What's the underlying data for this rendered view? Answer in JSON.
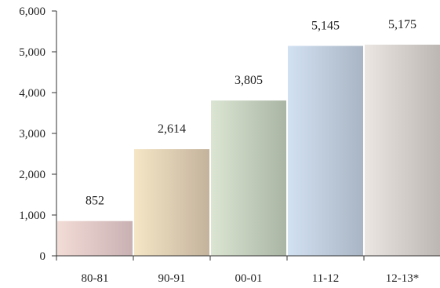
{
  "chart_data": {
    "type": "bar",
    "title": "",
    "xlabel": "",
    "ylabel": "",
    "categories": [
      "80-81",
      "90-91",
      "00-01",
      "11-12",
      "12-13*"
    ],
    "values": [
      852,
      2614,
      3805,
      5145,
      5175
    ],
    "data_labels": [
      "852",
      "2,614",
      "3,805",
      "5,145",
      "5,175"
    ],
    "ylim": [
      0,
      6000
    ],
    "yticks": [
      0,
      1000,
      2000,
      3000,
      4000,
      5000,
      6000
    ],
    "ytick_labels": [
      "0",
      "1,000",
      "2,000",
      "3,000",
      "4,000",
      "5,000",
      "6,000"
    ],
    "grid": false,
    "legend": "none",
    "bar_gradients": [
      [
        "#f3dcd6",
        "#c9b1b3"
      ],
      [
        "#f5e6c6",
        "#c4b39c"
      ],
      [
        "#dbe5d2",
        "#aab5a4"
      ],
      [
        "#d2e1f2",
        "#a9b5c4"
      ],
      [
        "#ece6e2",
        "#bdb7b3"
      ]
    ]
  }
}
